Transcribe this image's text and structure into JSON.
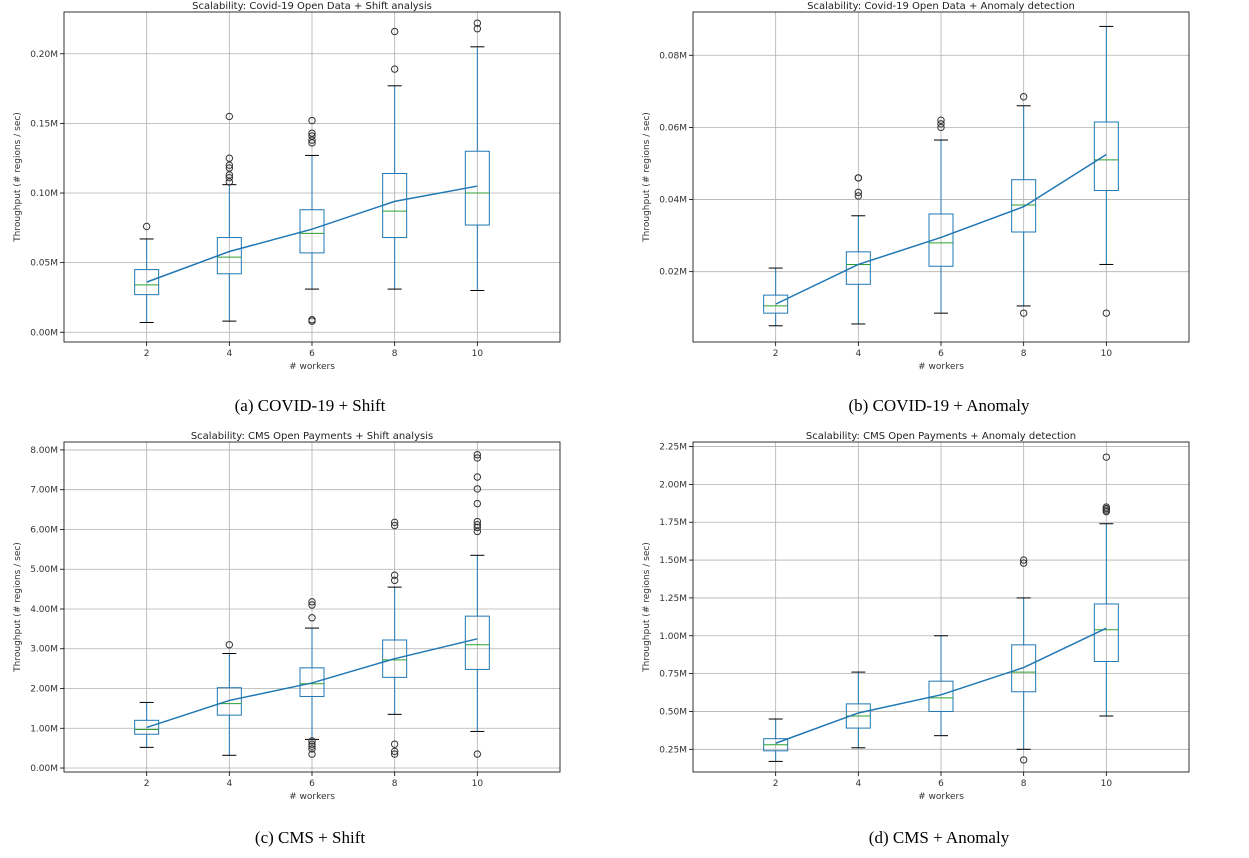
{
  "chart_data": [
    {
      "type": "box",
      "title": "Scalability: Covid-19 Open Data + Shift analysis",
      "caption": "(a) COVID-19 + Shift",
      "xlabel": "# workers",
      "ylabel": "Throughput (# regions / sec)",
      "categories": [
        "2",
        "4",
        "6",
        "8",
        "10"
      ],
      "ylim": [
        -0.007,
        0.23
      ],
      "yticks": [
        0,
        0.05,
        0.1,
        0.15,
        0.2
      ],
      "yticklabels": [
        "0.00M",
        "0.05M",
        "0.10M",
        "0.15M",
        "0.20M"
      ],
      "grid": true,
      "colors": {
        "box": "#1f77b4",
        "median": "#2ca02c",
        "mean_line": "#1f77b4",
        "cap": "#000000",
        "outlier": "#333333"
      },
      "boxes": [
        {
          "whisker_low": 0.007,
          "q1": 0.027,
          "median": 0.034,
          "q3": 0.045,
          "whisker_high": 0.067,
          "outliers": [
            0.076
          ]
        },
        {
          "whisker_low": 0.008,
          "q1": 0.042,
          "median": 0.054,
          "q3": 0.068,
          "whisker_high": 0.106,
          "outliers": [
            0.108,
            0.111,
            0.113,
            0.118,
            0.12,
            0.125,
            0.155
          ]
        },
        {
          "whisker_low": 0.031,
          "q1": 0.057,
          "median": 0.071,
          "q3": 0.088,
          "whisker_high": 0.127,
          "outliers": [
            0.008,
            0.009,
            0.136,
            0.138,
            0.141,
            0.143,
            0.152
          ]
        },
        {
          "whisker_low": 0.031,
          "q1": 0.068,
          "median": 0.087,
          "q3": 0.114,
          "whisker_high": 0.177,
          "outliers": [
            0.189,
            0.216
          ]
        },
        {
          "whisker_low": 0.03,
          "q1": 0.077,
          "median": 0.1,
          "q3": 0.13,
          "whisker_high": 0.205,
          "outliers": [
            0.218,
            0.222
          ]
        }
      ],
      "mean_line": [
        0.036,
        0.058,
        0.074,
        0.094,
        0.105
      ]
    },
    {
      "type": "box",
      "title": "Scalability: Covid-19 Open Data + Anomaly detection",
      "caption": "(b) COVID-19 + Anomaly",
      "xlabel": "# workers",
      "ylabel": "Throughput (# regions / sec)",
      "categories": [
        "2",
        "4",
        "6",
        "8",
        "10"
      ],
      "ylim": [
        0.0005,
        0.092
      ],
      "yticks": [
        0.02,
        0.04,
        0.06,
        0.08
      ],
      "yticklabels": [
        "0.02M",
        "0.04M",
        "0.06M",
        "0.08M"
      ],
      "grid": true,
      "colors": {
        "box": "#1f77b4",
        "median": "#2ca02c",
        "mean_line": "#1f77b4",
        "cap": "#000000",
        "outlier": "#333333"
      },
      "boxes": [
        {
          "whisker_low": 0.005,
          "q1": 0.0085,
          "median": 0.0105,
          "q3": 0.0135,
          "whisker_high": 0.021,
          "outliers": []
        },
        {
          "whisker_low": 0.0055,
          "q1": 0.0165,
          "median": 0.022,
          "q3": 0.0255,
          "whisker_high": 0.0355,
          "outliers": [
            0.041,
            0.042,
            0.046,
            0.046
          ]
        },
        {
          "whisker_low": 0.0085,
          "q1": 0.0215,
          "median": 0.028,
          "q3": 0.036,
          "whisker_high": 0.0565,
          "outliers": [
            0.06,
            0.061,
            0.062
          ]
        },
        {
          "whisker_low": 0.0105,
          "q1": 0.031,
          "median": 0.0385,
          "q3": 0.0455,
          "whisker_high": 0.066,
          "outliers": [
            0.0085,
            0.0685
          ]
        },
        {
          "whisker_low": 0.022,
          "q1": 0.0425,
          "median": 0.051,
          "q3": 0.0615,
          "whisker_high": 0.088,
          "outliers": [
            0.0085
          ]
        }
      ],
      "mean_line": [
        0.011,
        0.022,
        0.0295,
        0.038,
        0.0525
      ]
    },
    {
      "type": "box",
      "title": "Scalability: CMS Open Payments + Shift analysis",
      "caption": "(c) CMS + Shift",
      "xlabel": "# workers",
      "ylabel": "Throughput (# regions / sec)",
      "categories": [
        "2",
        "4",
        "6",
        "8",
        "10"
      ],
      "ylim": [
        -0.1,
        8.2
      ],
      "yticks": [
        0,
        1,
        2,
        3,
        4,
        5,
        6,
        7,
        8
      ],
      "yticklabels": [
        "0.00M",
        "1.00M",
        "2.00M",
        "3.00M",
        "4.00M",
        "5.00M",
        "6.00M",
        "7.00M",
        "8.00M"
      ],
      "grid": true,
      "colors": {
        "box": "#1f77b4",
        "median": "#2ca02c",
        "mean_line": "#1f77b4",
        "cap": "#000000",
        "outlier": "#333333"
      },
      "boxes": [
        {
          "whisker_low": 0.52,
          "q1": 0.85,
          "median": 0.97,
          "q3": 1.2,
          "whisker_high": 1.65,
          "outliers": []
        },
        {
          "whisker_low": 0.32,
          "q1": 1.33,
          "median": 1.62,
          "q3": 2.02,
          "whisker_high": 2.88,
          "outliers": [
            3.1
          ]
        },
        {
          "whisker_low": 0.72,
          "q1": 1.8,
          "median": 2.12,
          "q3": 2.52,
          "whisker_high": 3.52,
          "outliers": [
            0.35,
            0.48,
            0.55,
            0.6,
            0.68,
            3.78,
            4.1,
            4.18
          ]
        },
        {
          "whisker_low": 1.35,
          "q1": 2.28,
          "median": 2.72,
          "q3": 3.22,
          "whisker_high": 4.55,
          "outliers": [
            0.35,
            0.42,
            0.6,
            4.72,
            4.85,
            6.1,
            6.18
          ]
        },
        {
          "whisker_low": 0.92,
          "q1": 2.48,
          "median": 3.1,
          "q3": 3.82,
          "whisker_high": 5.35,
          "outliers": [
            0.35,
            5.95,
            6.05,
            6.12,
            6.2,
            6.65,
            7.02,
            7.32,
            7.8,
            7.88
          ]
        }
      ],
      "mean_line": [
        1.02,
        1.7,
        2.14,
        2.75,
        3.25
      ]
    },
    {
      "type": "box",
      "title": "Scalability: CMS Open Payments + Anomaly detection",
      "caption": "(d) CMS + Anomaly",
      "xlabel": "# workers",
      "ylabel": "Throughput (# regions / sec)",
      "categories": [
        "2",
        "4",
        "6",
        "8",
        "10"
      ],
      "ylim": [
        0.1,
        2.28
      ],
      "yticks": [
        0.25,
        0.5,
        0.75,
        1.0,
        1.25,
        1.5,
        1.75,
        2.0,
        2.25
      ],
      "yticklabels": [
        "0.25M",
        "0.50M",
        "0.75M",
        "1.00M",
        "1.25M",
        "1.50M",
        "1.75M",
        "2.00M",
        "2.25M"
      ],
      "grid": true,
      "colors": {
        "box": "#1f77b4",
        "median": "#2ca02c",
        "mean_line": "#1f77b4",
        "cap": "#000000",
        "outlier": "#333333"
      },
      "boxes": [
        {
          "whisker_low": 0.17,
          "q1": 0.24,
          "median": 0.28,
          "q3": 0.32,
          "whisker_high": 0.45,
          "outliers": []
        },
        {
          "whisker_low": 0.26,
          "q1": 0.39,
          "median": 0.47,
          "q3": 0.55,
          "whisker_high": 0.76,
          "outliers": []
        },
        {
          "whisker_low": 0.34,
          "q1": 0.5,
          "median": 0.59,
          "q3": 0.7,
          "whisker_high": 1.0,
          "outliers": []
        },
        {
          "whisker_low": 0.25,
          "q1": 0.63,
          "median": 0.76,
          "q3": 0.94,
          "whisker_high": 1.25,
          "outliers": [
            0.18,
            1.48,
            1.5
          ]
        },
        {
          "whisker_low": 0.47,
          "q1": 0.83,
          "median": 1.04,
          "q3": 1.21,
          "whisker_high": 1.74,
          "outliers": [
            1.82,
            1.83,
            1.84,
            1.85,
            2.18
          ]
        }
      ],
      "mean_line": [
        0.29,
        0.49,
        0.61,
        0.79,
        1.05
      ]
    }
  ]
}
